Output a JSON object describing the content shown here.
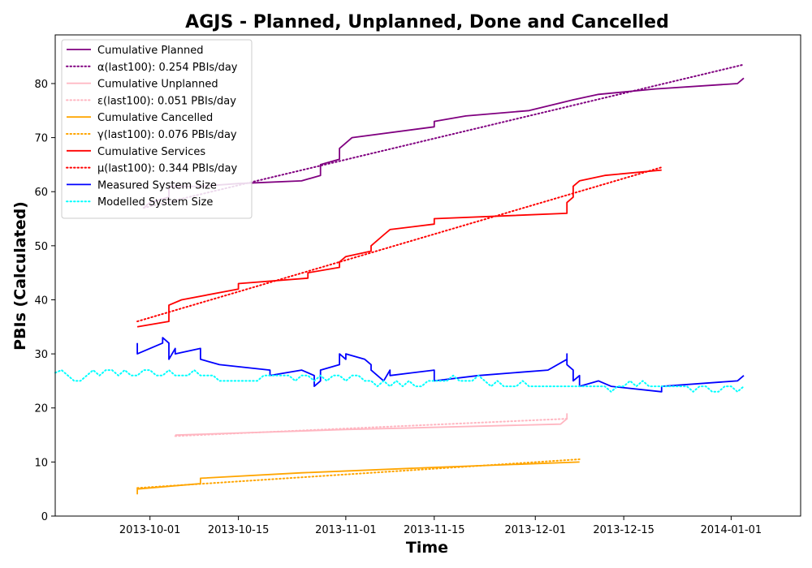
{
  "chart_data": {
    "type": "line",
    "title": "AGJS - Planned, Unplanned, Done  and Cancelled",
    "xlabel": "Time",
    "ylabel": "PBIs (Calculated)",
    "xlim": [
      "2013-09-16",
      "2014-01-12"
    ],
    "ylim": [
      0,
      89
    ],
    "x_ticks": [
      "2013-10-01",
      "2013-10-15",
      "2013-11-01",
      "2013-11-15",
      "2013-12-01",
      "2013-12-15",
      "2014-01-01"
    ],
    "y_ticks": [
      0,
      10,
      20,
      30,
      40,
      50,
      60,
      70,
      80
    ],
    "grid": false,
    "legend_position": "upper-left",
    "series": [
      {
        "name": "Cumulative Planned",
        "color": "#800080",
        "style": "solid",
        "points": [
          [
            "2013-09-30",
            57
          ],
          [
            "2013-10-01",
            58
          ],
          [
            "2013-10-04",
            59
          ],
          [
            "2013-10-04",
            61
          ],
          [
            "2013-10-09",
            61
          ],
          [
            "2013-10-15",
            61.5
          ],
          [
            "2013-10-25",
            62
          ],
          [
            "2013-10-28",
            63
          ],
          [
            "2013-10-28",
            65
          ],
          [
            "2013-10-31",
            66
          ],
          [
            "2013-10-31",
            68
          ],
          [
            "2013-11-02",
            70
          ],
          [
            "2013-11-15",
            72
          ],
          [
            "2013-11-15",
            73
          ],
          [
            "2013-11-20",
            74
          ],
          [
            "2013-11-30",
            75
          ],
          [
            "2013-12-07",
            77
          ],
          [
            "2013-12-11",
            78
          ],
          [
            "2013-12-20",
            79
          ],
          [
            "2014-01-02",
            80
          ],
          [
            "2014-01-03",
            81
          ]
        ]
      },
      {
        "name": "α(last100): 0.254 PBIs/day",
        "color": "#800080",
        "style": "dotted",
        "points": [
          [
            "2013-09-30",
            57
          ],
          [
            "2014-01-03",
            83.5
          ]
        ]
      },
      {
        "name": "Cumulative Unplanned",
        "color": "#ffb6c1",
        "style": "solid",
        "points": [
          [
            "2013-10-05",
            15
          ],
          [
            "2013-11-01",
            16
          ],
          [
            "2013-12-05",
            17
          ],
          [
            "2013-12-06",
            18
          ],
          [
            "2013-12-06",
            19
          ]
        ]
      },
      {
        "name": "ε(last100): 0.051 PBIs/day",
        "color": "#ffb6c1",
        "style": "dotted",
        "points": [
          [
            "2013-10-05",
            14.8
          ],
          [
            "2013-12-06",
            18
          ]
        ]
      },
      {
        "name": "Cumulative Cancelled",
        "color": "#ffa500",
        "style": "solid",
        "points": [
          [
            "2013-09-29",
            4
          ],
          [
            "2013-09-29",
            5
          ],
          [
            "2013-10-09",
            6
          ],
          [
            "2013-10-09",
            7
          ],
          [
            "2013-10-25",
            8
          ],
          [
            "2013-11-15",
            9
          ],
          [
            "2013-12-08",
            10
          ]
        ]
      },
      {
        "name": "γ(last100): 0.076 PBIs/day",
        "color": "#ffa500",
        "style": "dotted",
        "points": [
          [
            "2013-09-29",
            5.2
          ],
          [
            "2013-12-08",
            10.5
          ]
        ]
      },
      {
        "name": "Cumulative Services",
        "color": "#ff0000",
        "style": "solid",
        "points": [
          [
            "2013-09-29",
            35
          ],
          [
            "2013-10-04",
            36
          ],
          [
            "2013-10-04",
            39
          ],
          [
            "2013-10-06",
            40
          ],
          [
            "2013-10-15",
            42
          ],
          [
            "2013-10-15",
            43
          ],
          [
            "2013-10-26",
            44
          ],
          [
            "2013-10-26",
            45
          ],
          [
            "2013-10-31",
            46
          ],
          [
            "2013-10-31",
            47
          ],
          [
            "2013-11-01",
            48
          ],
          [
            "2013-11-05",
            49
          ],
          [
            "2013-11-05",
            50
          ],
          [
            "2013-11-07",
            52
          ],
          [
            "2013-11-08",
            53
          ],
          [
            "2013-11-15",
            54
          ],
          [
            "2013-11-15",
            55
          ],
          [
            "2013-12-06",
            56
          ],
          [
            "2013-12-06",
            58
          ],
          [
            "2013-12-07",
            59
          ],
          [
            "2013-12-07",
            61
          ],
          [
            "2013-12-08",
            62
          ],
          [
            "2013-12-12",
            63
          ],
          [
            "2013-12-21",
            64
          ]
        ]
      },
      {
        "name": "μ(last100): 0.344 PBIs/day",
        "color": "#ff0000",
        "style": "dotted",
        "points": [
          [
            "2013-09-29",
            36
          ],
          [
            "2013-12-21",
            64.5
          ]
        ]
      },
      {
        "name": "Measured System Size",
        "color": "#0000ff",
        "style": "solid",
        "points": [
          [
            "2013-09-29",
            32
          ],
          [
            "2013-09-29",
            30
          ],
          [
            "2013-10-01",
            31
          ],
          [
            "2013-10-03",
            32
          ],
          [
            "2013-10-03",
            33
          ],
          [
            "2013-10-04",
            32
          ],
          [
            "2013-10-04",
            29
          ],
          [
            "2013-10-05",
            31
          ],
          [
            "2013-10-05",
            30
          ],
          [
            "2013-10-09",
            31
          ],
          [
            "2013-10-09",
            29
          ],
          [
            "2013-10-12",
            28
          ],
          [
            "2013-10-20",
            27
          ],
          [
            "2013-10-20",
            26
          ],
          [
            "2013-10-25",
            27
          ],
          [
            "2013-10-27",
            26
          ],
          [
            "2013-10-27",
            24
          ],
          [
            "2013-10-28",
            25
          ],
          [
            "2013-10-28",
            27
          ],
          [
            "2013-10-31",
            28
          ],
          [
            "2013-10-31",
            30
          ],
          [
            "2013-11-01",
            29
          ],
          [
            "2013-11-01",
            30
          ],
          [
            "2013-11-04",
            29
          ],
          [
            "2013-11-05",
            28
          ],
          [
            "2013-11-05",
            27
          ],
          [
            "2013-11-07",
            25
          ],
          [
            "2013-11-08",
            27
          ],
          [
            "2013-11-08",
            26
          ],
          [
            "2013-11-15",
            27
          ],
          [
            "2013-11-15",
            25
          ],
          [
            "2013-11-22",
            26
          ],
          [
            "2013-12-03",
            27
          ],
          [
            "2013-12-06",
            29
          ],
          [
            "2013-12-06",
            30
          ],
          [
            "2013-12-06",
            28
          ],
          [
            "2013-12-07",
            27
          ],
          [
            "2013-12-07",
            25
          ],
          [
            "2013-12-08",
            26
          ],
          [
            "2013-12-08",
            24
          ],
          [
            "2013-12-11",
            25
          ],
          [
            "2013-12-13",
            24
          ],
          [
            "2013-12-21",
            23
          ],
          [
            "2013-12-21",
            24
          ],
          [
            "2014-01-02",
            25
          ],
          [
            "2014-01-03",
            26
          ]
        ]
      },
      {
        "name": "Modelled System Size",
        "color": "#00ffff",
        "style": "dotted",
        "points": [
          [
            "2013-09-16",
            26.5
          ],
          [
            "2013-09-17",
            27
          ],
          [
            "2013-09-18",
            26
          ],
          [
            "2013-09-19",
            25
          ],
          [
            "2013-09-20",
            25
          ],
          [
            "2013-09-21",
            26
          ],
          [
            "2013-09-22",
            27
          ],
          [
            "2013-09-23",
            26
          ],
          [
            "2013-09-24",
            27
          ],
          [
            "2013-09-25",
            27
          ],
          [
            "2013-09-26",
            26
          ],
          [
            "2013-09-27",
            27
          ],
          [
            "2013-09-28",
            26
          ],
          [
            "2013-09-29",
            26
          ],
          [
            "2013-09-30",
            27
          ],
          [
            "2013-10-01",
            27
          ],
          [
            "2013-10-02",
            26
          ],
          [
            "2013-10-03",
            26
          ],
          [
            "2013-10-04",
            27
          ],
          [
            "2013-10-05",
            26
          ],
          [
            "2013-10-06",
            26
          ],
          [
            "2013-10-07",
            26
          ],
          [
            "2013-10-08",
            27
          ],
          [
            "2013-10-09",
            26
          ],
          [
            "2013-10-10",
            26
          ],
          [
            "2013-10-11",
            26
          ],
          [
            "2013-10-12",
            25
          ],
          [
            "2013-10-13",
            25
          ],
          [
            "2013-10-14",
            25
          ],
          [
            "2013-10-15",
            25
          ],
          [
            "2013-10-16",
            25
          ],
          [
            "2013-10-17",
            25
          ],
          [
            "2013-10-18",
            25
          ],
          [
            "2013-10-19",
            26
          ],
          [
            "2013-10-20",
            26
          ],
          [
            "2013-10-21",
            26
          ],
          [
            "2013-10-22",
            26
          ],
          [
            "2013-10-23",
            26
          ],
          [
            "2013-10-24",
            25
          ],
          [
            "2013-10-25",
            26
          ],
          [
            "2013-10-26",
            26
          ],
          [
            "2013-10-27",
            25
          ],
          [
            "2013-10-28",
            26
          ],
          [
            "2013-10-29",
            25
          ],
          [
            "2013-10-30",
            26
          ],
          [
            "2013-10-31",
            26
          ],
          [
            "2013-11-01",
            25
          ],
          [
            "2013-11-02",
            26
          ],
          [
            "2013-11-03",
            26
          ],
          [
            "2013-11-04",
            25
          ],
          [
            "2013-11-05",
            25
          ],
          [
            "2013-11-06",
            24
          ],
          [
            "2013-11-07",
            25
          ],
          [
            "2013-11-08",
            24
          ],
          [
            "2013-11-09",
            25
          ],
          [
            "2013-11-10",
            24
          ],
          [
            "2013-11-11",
            25
          ],
          [
            "2013-11-12",
            24
          ],
          [
            "2013-11-13",
            24
          ],
          [
            "2013-11-14",
            25
          ],
          [
            "2013-11-15",
            25
          ],
          [
            "2013-11-16",
            25
          ],
          [
            "2013-11-17",
            25
          ],
          [
            "2013-11-18",
            26
          ],
          [
            "2013-11-19",
            25
          ],
          [
            "2013-11-20",
            25
          ],
          [
            "2013-11-21",
            25
          ],
          [
            "2013-11-22",
            26
          ],
          [
            "2013-11-23",
            25
          ],
          [
            "2013-11-24",
            24
          ],
          [
            "2013-11-25",
            25
          ],
          [
            "2013-11-26",
            24
          ],
          [
            "2013-11-27",
            24
          ],
          [
            "2013-11-28",
            24
          ],
          [
            "2013-11-29",
            25
          ],
          [
            "2013-11-30",
            24
          ],
          [
            "2013-12-01",
            24
          ],
          [
            "2013-12-02",
            24
          ],
          [
            "2013-12-03",
            24
          ],
          [
            "2013-12-04",
            24
          ],
          [
            "2013-12-05",
            24
          ],
          [
            "2013-12-06",
            24
          ],
          [
            "2013-12-07",
            24
          ],
          [
            "2013-12-08",
            24
          ],
          [
            "2013-12-09",
            24
          ],
          [
            "2013-12-10",
            24
          ],
          [
            "2013-12-11",
            24
          ],
          [
            "2013-12-12",
            24
          ],
          [
            "2013-12-13",
            23
          ],
          [
            "2013-12-14",
            24
          ],
          [
            "2013-12-15",
            24
          ],
          [
            "2013-12-16",
            25
          ],
          [
            "2013-12-17",
            24
          ],
          [
            "2013-12-18",
            25
          ],
          [
            "2013-12-19",
            24
          ],
          [
            "2013-12-20",
            24
          ],
          [
            "2013-12-21",
            24
          ],
          [
            "2013-12-22",
            24
          ],
          [
            "2013-12-23",
            24
          ],
          [
            "2013-12-24",
            24
          ],
          [
            "2013-12-25",
            24
          ],
          [
            "2013-12-26",
            23
          ],
          [
            "2013-12-27",
            24
          ],
          [
            "2013-12-28",
            24
          ],
          [
            "2013-12-29",
            23
          ],
          [
            "2013-12-30",
            23
          ],
          [
            "2013-12-31",
            24
          ],
          [
            "2014-01-01",
            24
          ],
          [
            "2014-01-02",
            23
          ],
          [
            "2014-01-03",
            24
          ]
        ]
      }
    ]
  }
}
